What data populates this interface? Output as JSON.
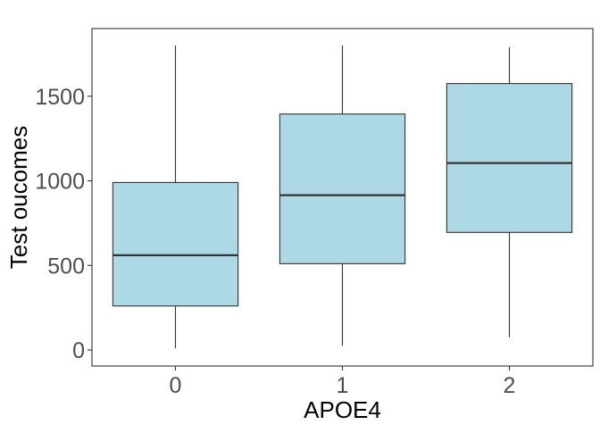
{
  "chart_data": {
    "type": "box",
    "title": "",
    "xlabel": "APOE4",
    "ylabel": "Test oucomes",
    "categories": [
      "0",
      "1",
      "2"
    ],
    "ylim": [
      -95,
      1900
    ],
    "yticks": [
      0,
      500,
      1000,
      1500
    ],
    "grid": false,
    "legend": "none",
    "fill_color": "#add8e6",
    "outline_color": "#333333",
    "boxes": [
      {
        "category": "0",
        "min": 10,
        "q1": 260,
        "median": 560,
        "q3": 990,
        "max": 1800
      },
      {
        "category": "1",
        "min": 25,
        "q1": 510,
        "median": 915,
        "q3": 1395,
        "max": 1800
      },
      {
        "category": "2",
        "min": 75,
        "q1": 695,
        "median": 1105,
        "q3": 1575,
        "max": 1790
      }
    ]
  }
}
